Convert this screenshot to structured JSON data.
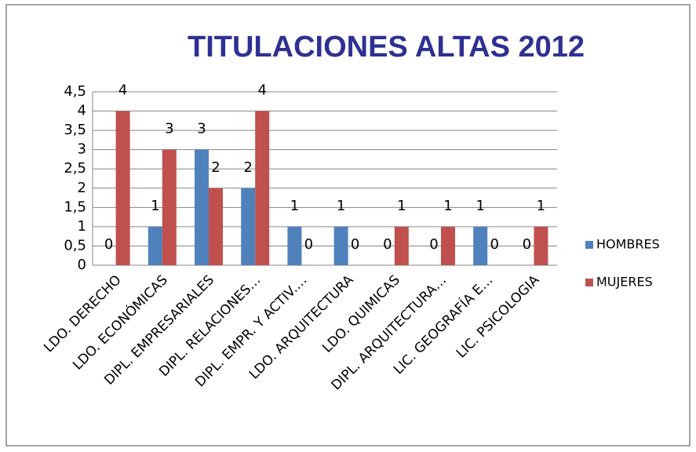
{
  "chart_data": {
    "type": "bar",
    "title": "TITULACIONES ALTAS 2012",
    "categories": [
      "LDO. DERECHO",
      "LDO. ECONÓMICAS",
      "DIPL. EMPRESARIALES",
      "DIPL. RELACIONES…",
      "DIPL. EMPR. Y ACTIV.…",
      "LDO. ARQUITECTURA",
      "LDO. QUIMICAS",
      "DIPL. ARQUITECTURA…",
      "LIC. GEOGRAFÍA E…",
      "LIC. PSICOLOGIA"
    ],
    "series": [
      {
        "name": "HOMBRES",
        "color": "#4f81bd",
        "values": [
          0,
          1,
          3,
          2,
          1,
          1,
          0,
          0,
          1,
          0
        ]
      },
      {
        "name": "MUJERES",
        "color": "#c0504d",
        "values": [
          4,
          3,
          2,
          4,
          0,
          0,
          1,
          1,
          0,
          1
        ]
      }
    ],
    "ylim": [
      0,
      4.5
    ],
    "yticks": [
      0,
      {
        "value": 0.5,
        "label": "0,5"
      },
      1,
      {
        "value": 1.5,
        "label": "1,5"
      },
      2,
      {
        "value": 2.5,
        "label": "2,5"
      },
      3,
      {
        "value": 3.5,
        "label": "3,5"
      },
      4,
      {
        "value": 4.5,
        "label": "4,5"
      }
    ],
    "grid": true,
    "legend": "right"
  }
}
